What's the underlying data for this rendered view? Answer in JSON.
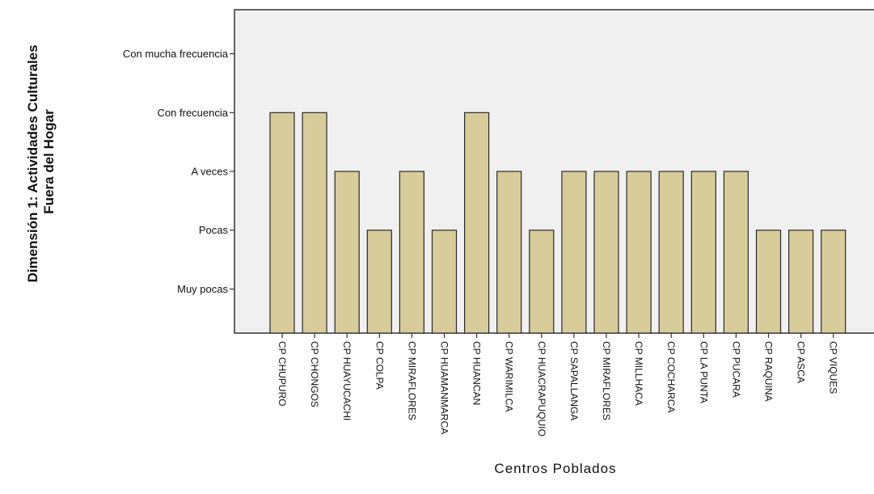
{
  "chart_data": {
    "type": "bar",
    "title": "",
    "xlabel": "Centros Poblados",
    "ylabel_lines": [
      "Dimensión 1: Actividades Culturales",
      "Fuera del Hogar"
    ],
    "y_levels": [
      "Muy pocas",
      "Pocas",
      "A veces",
      "Con frecuencia",
      "Con mucha frecuencia"
    ],
    "y_level_values": [
      1,
      2,
      3,
      4,
      5
    ],
    "ylim": [
      0.25,
      5.75
    ],
    "grid": false,
    "categories": [
      "CP CHUPURO",
      "CP CHONGOS",
      "CP HUAYUCACHI",
      "CP COLPA",
      "CP MIRAFLORES",
      "CP HUAMANMARCA",
      "CP HUANCAN",
      "CP WARIMILCA",
      "CP HUACRAPUQUIO",
      "CP SAPALLANGA",
      "CP MIRAFLORES",
      "CP MILLHACA",
      "CP COCHARCA",
      "CP LA PUNTA",
      "CP PUCARA",
      "CP RAQUINA",
      "CP ASCA",
      "CP VIQUES"
    ],
    "values": [
      4,
      4,
      3,
      2,
      3,
      2,
      4,
      3,
      2,
      3,
      3,
      3,
      3,
      3,
      3,
      2,
      2,
      2
    ],
    "colors": {
      "bar_fill": "#d7cc9a",
      "bar_stroke": "#2a2a2a",
      "plot_bg": "#f0f0f0",
      "axis": "#333333"
    }
  }
}
